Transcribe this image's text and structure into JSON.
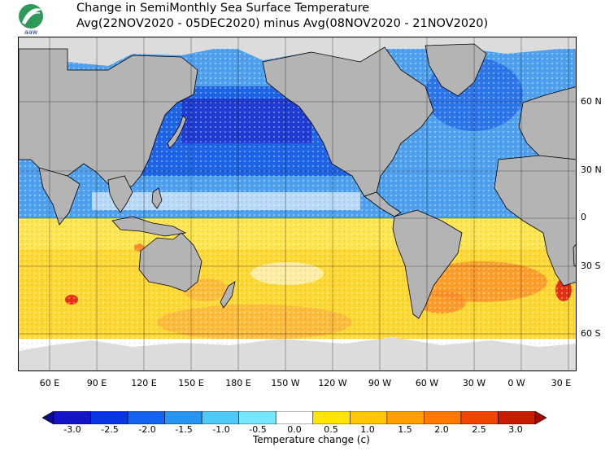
{
  "header": {
    "logo_text": "aaw",
    "title_line1": "Change in SemiMonthly Sea Surface Temperature",
    "title_line2": "Avg(22NOV2020 - 05DEC2020) minus Avg(08NOV2020 - 21NOV2020)"
  },
  "map": {
    "x_labels": [
      "60 E",
      "90 E",
      "120 E",
      "150 E",
      "180 E",
      "150 W",
      "120 W",
      "90 W",
      "60 W",
      "30 W",
      "0 W",
      "30 E"
    ],
    "y_labels": [
      "60 N",
      "30 N",
      "0",
      "30 S",
      "60 S"
    ]
  },
  "colorbar": {
    "title": "Temperature change  (c)",
    "tick_labels": [
      "-3.0",
      "-2.5",
      "-2.0",
      "-1.5",
      "-1.0",
      "-0.5",
      "0.0",
      "0.5",
      "1.0",
      "1.5",
      "2.0",
      "2.5",
      "3.0"
    ],
    "colors": [
      "#0a0a8a",
      "#1414c8",
      "#0a37e6",
      "#1464f0",
      "#2896f0",
      "#50c8f5",
      "#78e6fa",
      "#ffffff",
      "#ffe600",
      "#ffc800",
      "#ffa000",
      "#ff7800",
      "#f04600",
      "#c81e00",
      "#a00a00"
    ]
  },
  "palette": {
    "land": "#b4b4b4",
    "ice": "#dcdcdc",
    "blue_dark": "#1e3cd2",
    "blue": "#1e64e6",
    "blue_light": "#50a0f0",
    "cyan": "#8cd2fa",
    "white": "#ffffff",
    "yellow": "#ffe650",
    "yellow_deep": "#ffd228",
    "orange_light": "#ffb43c",
    "orange": "#ff8c28",
    "red": "#e63214"
  }
}
